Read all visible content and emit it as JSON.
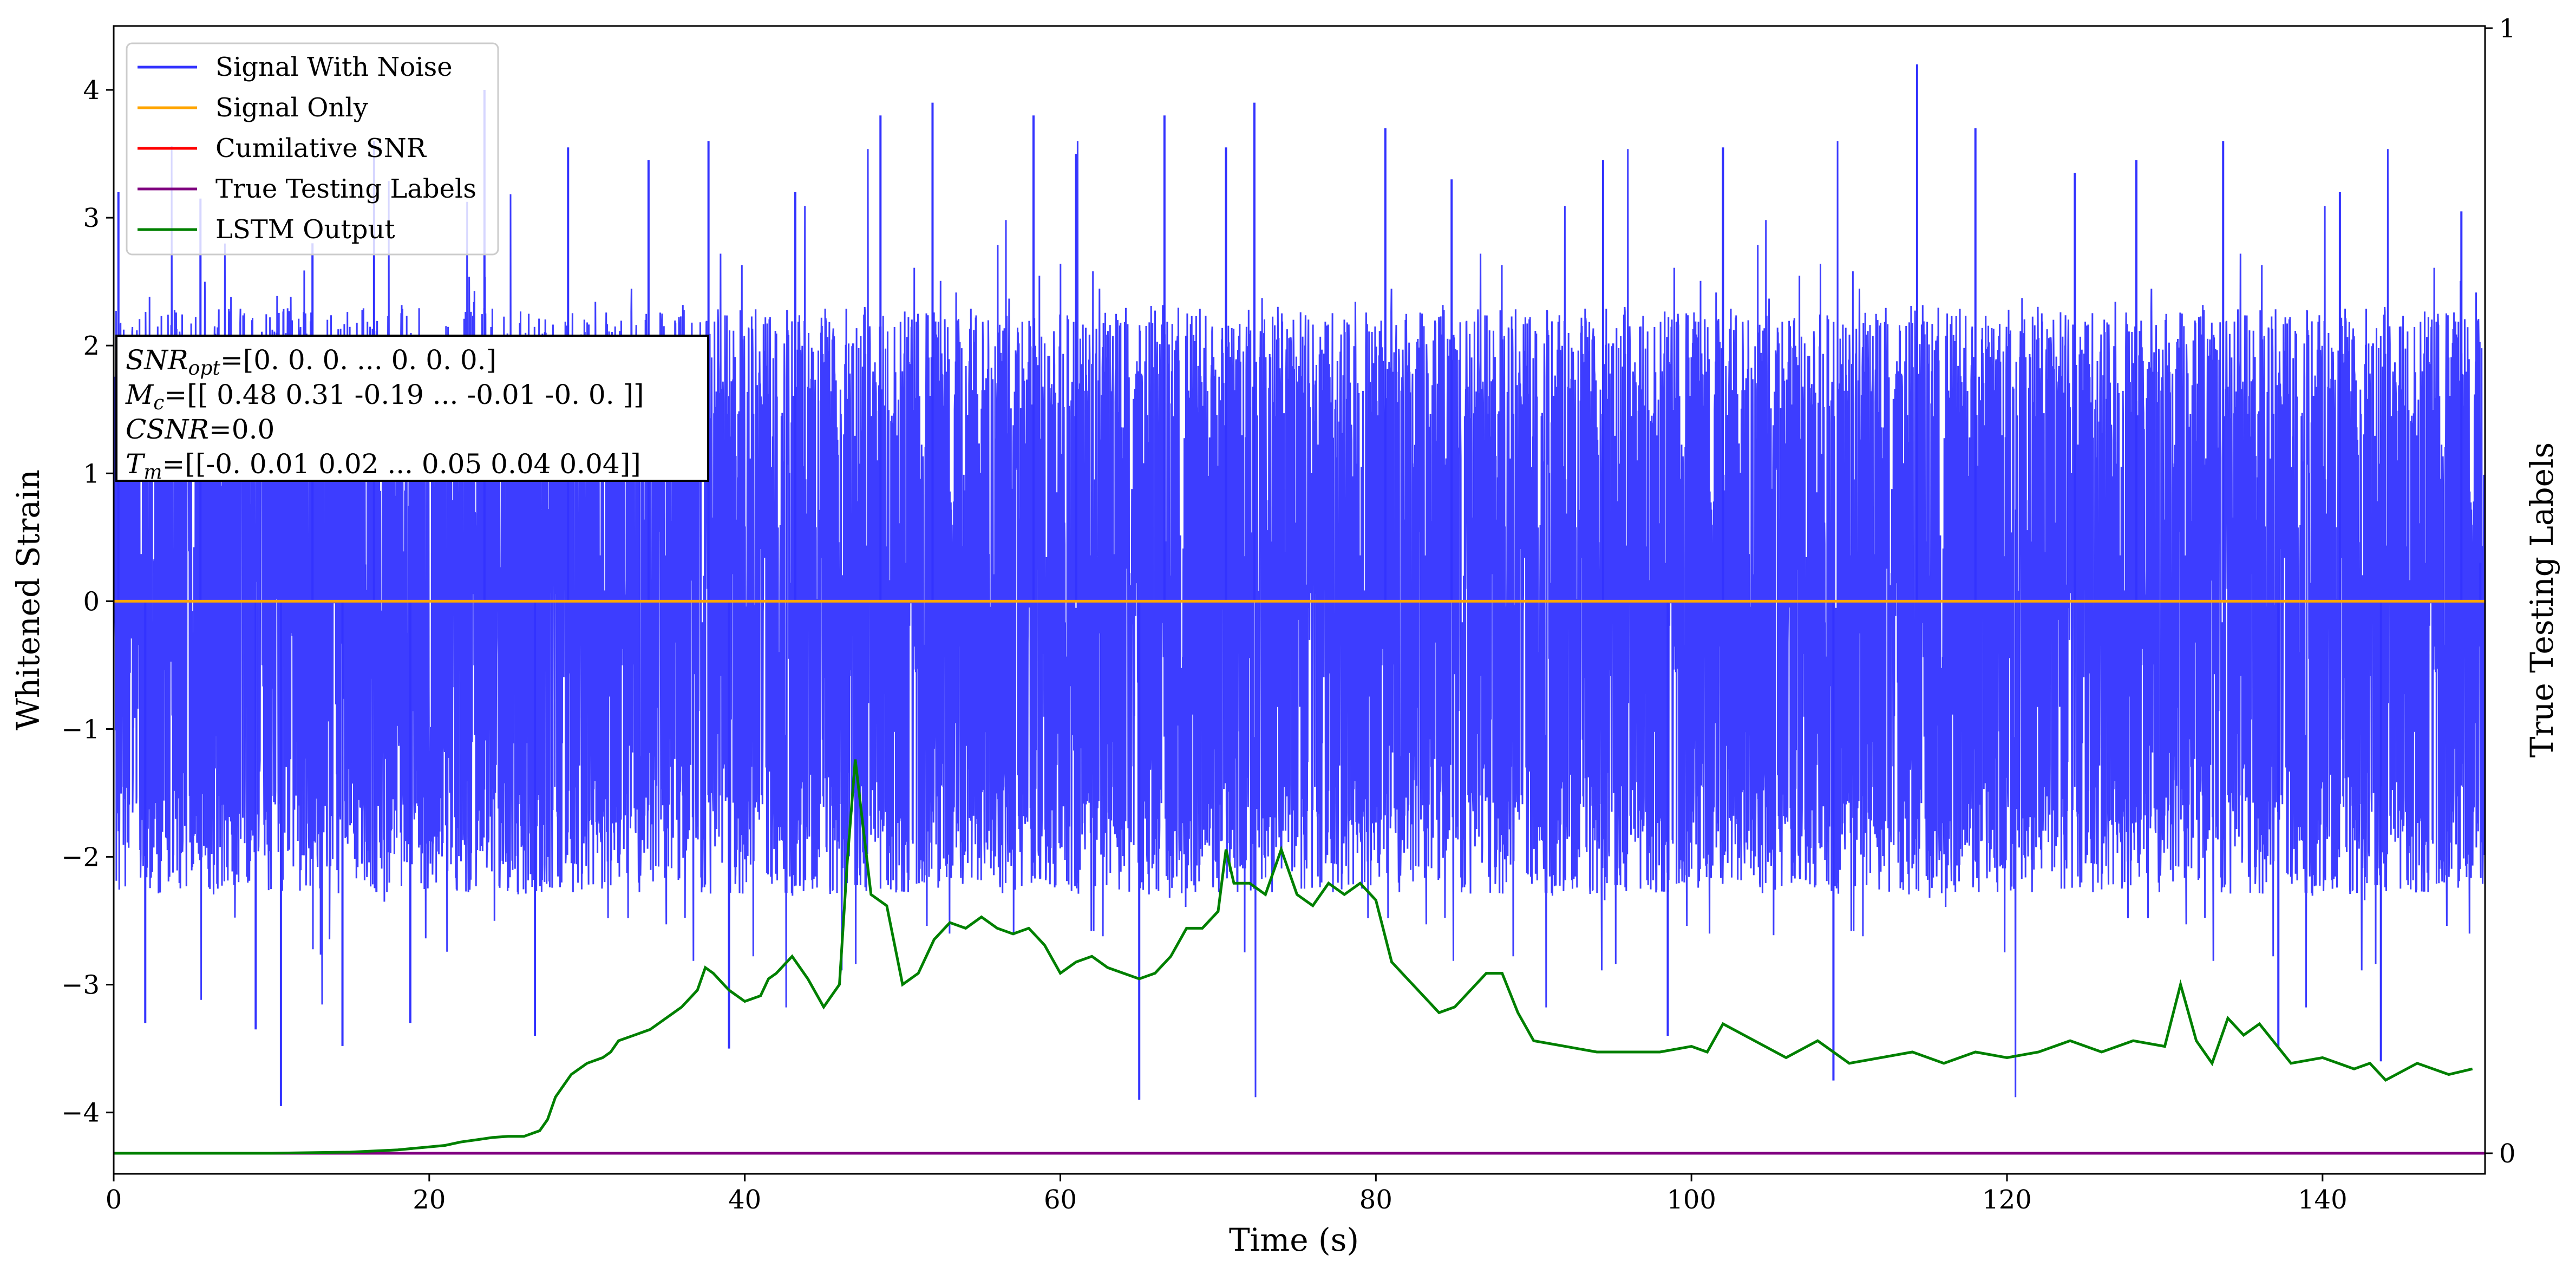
{
  "chart_data": {
    "type": "line",
    "xlabel": "Time (s)",
    "ylabel": "Whitened Strain",
    "y2label": "True Testing Labels",
    "xlim": [
      0,
      150.3
    ],
    "ylim": [
      -4.48,
      4.5
    ],
    "y2lim": [
      0,
      1
    ],
    "xticks": [
      0,
      20,
      40,
      60,
      80,
      100,
      120,
      140
    ],
    "yticks": [
      -4,
      -3,
      -2,
      -1,
      0,
      1,
      2,
      3,
      4
    ],
    "y2ticks": [
      0,
      1
    ],
    "grid": false,
    "legend_position": "top-left",
    "series": [
      {
        "name": "Signal With Noise",
        "color": "#3333ff",
        "axis": "left",
        "typical_envelope": [
          -1.7,
          1.7
        ],
        "x": [
          0.3,
          2.0,
          5.5,
          9.0,
          10.6,
          12.6,
          14.5,
          16.5,
          18.8,
          23.5,
          26.7,
          28.8,
          33.9,
          37.7,
          39.0,
          43.2,
          48.6,
          51.9,
          58.3,
          61.0,
          65.0,
          66.6,
          70.5,
          72.3,
          80.6,
          84.8,
          94.4,
          98.5,
          102.0,
          109.0,
          114.3,
          118.0,
          124.3,
          128.2,
          133.7,
          137.2,
          141.1,
          143.7,
          148.8,
          150.0
        ],
        "y": [
          3.2,
          -3.3,
          3.15,
          -3.35,
          -3.95,
          2.8,
          -3.48,
          3.6,
          -3.3,
          4.0,
          -3.4,
          3.55,
          3.45,
          3.6,
          -3.5,
          3.2,
          3.8,
          3.9,
          3.8,
          3.5,
          -3.9,
          3.8,
          3.55,
          3.9,
          3.7,
          3.3,
          3.45,
          -3.4,
          3.55,
          -3.75,
          4.2,
          3.7,
          3.35,
          3.45,
          3.6,
          -3.5,
          3.2,
          -3.6,
          3.05,
          0.3
        ]
      },
      {
        "name": "Signal Only",
        "color": "#ffa500",
        "axis": "left",
        "x": [
          0,
          150.3
        ],
        "y": [
          0,
          0
        ]
      },
      {
        "name": "Cumilative SNR",
        "color": "#ff0000",
        "axis": "right",
        "x": [],
        "y": []
      },
      {
        "name": "True Testing Labels",
        "color": "#800080",
        "axis": "right",
        "x": [
          0,
          150.3
        ],
        "y": [
          0,
          0
        ]
      },
      {
        "name": "LSTM Output",
        "color": "#008000",
        "axis": "right",
        "x": [
          0,
          10,
          15,
          18,
          19.5,
          21,
          22,
          23,
          24,
          25,
          26,
          27,
          27.5,
          28,
          28.5,
          29,
          29.5,
          30,
          31,
          31.5,
          32,
          33,
          34,
          35,
          35.5,
          36,
          37,
          37.5,
          38,
          39,
          40,
          41,
          41.5,
          42,
          43,
          44,
          45,
          45.5,
          46,
          46.5,
          47,
          47.5,
          48,
          49,
          50,
          51,
          52,
          53,
          54,
          55,
          56,
          57,
          58,
          59,
          60,
          61,
          62,
          63,
          64,
          65,
          66,
          67,
          68,
          69,
          70,
          70.5,
          71,
          72,
          73,
          74,
          75,
          76,
          77,
          78,
          79,
          80,
          81,
          82,
          83,
          84,
          85,
          86,
          87,
          88,
          89,
          90,
          92,
          94,
          96,
          98,
          100,
          101,
          102,
          104,
          106,
          108,
          110,
          112,
          114,
          116,
          118,
          120,
          122,
          124,
          126,
          128,
          130,
          131,
          132,
          133,
          134,
          135,
          136,
          138,
          140,
          142,
          143,
          144,
          146,
          148,
          149.5
        ],
        "y": [
          0,
          0,
          0.001,
          0.003,
          0.005,
          0.007,
          0.01,
          0.012,
          0.014,
          0.015,
          0.015,
          0.02,
          0.03,
          0.05,
          0.06,
          0.07,
          0.075,
          0.08,
          0.085,
          0.09,
          0.1,
          0.105,
          0.11,
          0.12,
          0.125,
          0.13,
          0.145,
          0.165,
          0.16,
          0.145,
          0.135,
          0.14,
          0.155,
          0.16,
          0.175,
          0.155,
          0.13,
          0.14,
          0.15,
          0.26,
          0.35,
          0.29,
          0.23,
          0.22,
          0.15,
          0.16,
          0.19,
          0.205,
          0.2,
          0.21,
          0.2,
          0.195,
          0.2,
          0.185,
          0.16,
          0.17,
          0.175,
          0.165,
          0.16,
          0.155,
          0.16,
          0.175,
          0.2,
          0.2,
          0.215,
          0.27,
          0.24,
          0.24,
          0.23,
          0.27,
          0.23,
          0.22,
          0.24,
          0.23,
          0.24,
          0.225,
          0.17,
          0.155,
          0.14,
          0.125,
          0.13,
          0.145,
          0.16,
          0.16,
          0.125,
          0.1,
          0.095,
          0.09,
          0.09,
          0.09,
          0.095,
          0.09,
          0.115,
          0.1,
          0.085,
          0.1,
          0.08,
          0.085,
          0.09,
          0.08,
          0.09,
          0.085,
          0.09,
          0.1,
          0.09,
          0.1,
          0.095,
          0.15,
          0.1,
          0.08,
          0.12,
          0.105,
          0.115,
          0.08,
          0.085,
          0.075,
          0.08,
          0.065,
          0.08,
          0.07,
          0.075
        ]
      }
    ],
    "annotation": {
      "lines": [
        {
          "sym": "SNR",
          "sub": "opt",
          "rest": "=[0. 0. 0. ... 0. 0. 0.]"
        },
        {
          "sym": "M",
          "sub": "c",
          "rest": "=[[ 0.48  0.31 -0.19 ... -0.01 -0.    0.  ]]"
        },
        {
          "sym": "CSNR",
          "sub": "",
          "rest": "=0.0"
        },
        {
          "sym": "T",
          "sub": "m",
          "rest": "=[[-0.    0.01  0.02 ...  0.05  0.04  0.04]]"
        }
      ]
    }
  }
}
